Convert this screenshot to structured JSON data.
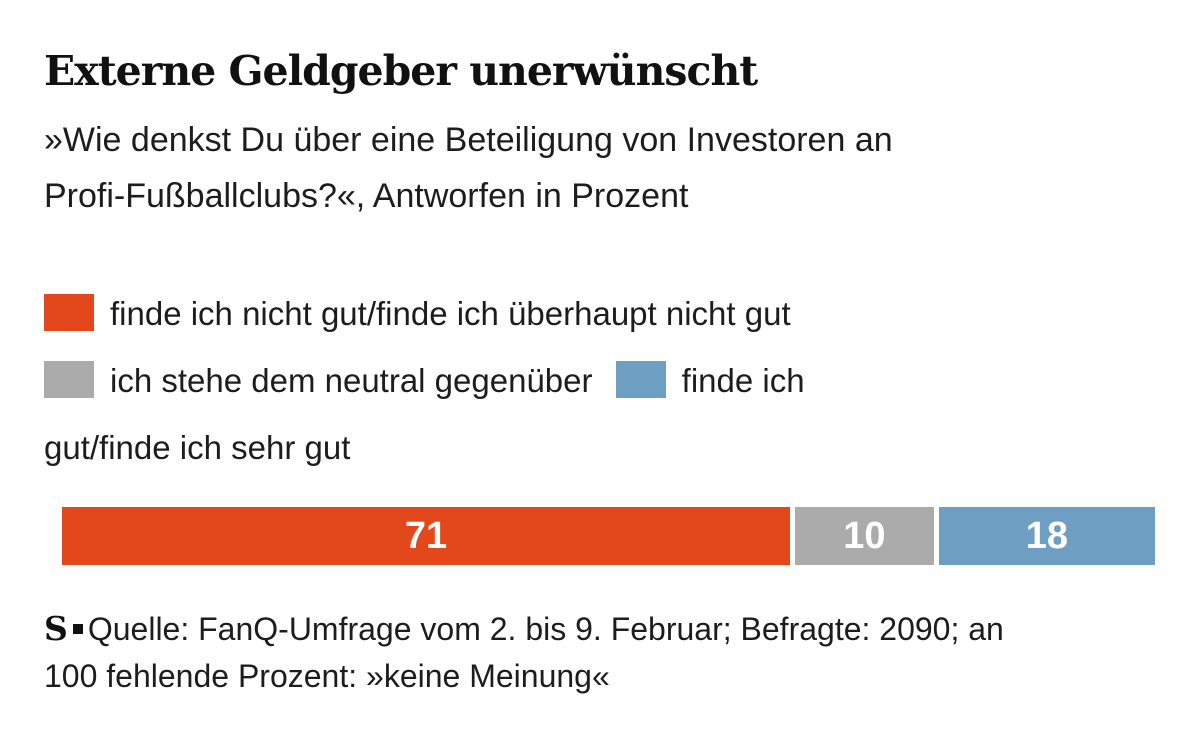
{
  "header": {
    "title": "Externe Geldgeber unerwünscht",
    "subtitle_line1": "»Wie denkst Du über eine Beteiligung von Investoren an",
    "subtitle_line2": "Profi-Fußballclubs?«, Antworfen in Prozent"
  },
  "chart_data": {
    "type": "bar",
    "stacked": true,
    "orientation": "horizontal",
    "title": "Externe Geldgeber unerwünscht",
    "subtitle": "»Wie denkst Du über eine Beteiligung von Investoren an Profi-Fußballclubs?«, Antworfen in Prozent",
    "unit": "Prozent",
    "xlim": [
      0,
      100
    ],
    "legend_position": "above-bar",
    "grid": false,
    "series": [
      {
        "name": "finde ich nicht gut/finde ich überhaupt nicht gut",
        "value": 71,
        "color": "#e2481c"
      },
      {
        "name": "ich stehe dem neutral gegenüber",
        "value": 10,
        "color": "#ababab"
      },
      {
        "name": "finde ich gut/finde ich sehr gut",
        "value": 18,
        "color": "#6f9ec3"
      }
    ],
    "note": "an 100 fehlende Prozent: »keine Meinung«"
  },
  "source": {
    "logo": "S",
    "line1": "Quelle: FanQ-Umfrage vom 2. bis 9. Februar; Befragte: 2090; an",
    "line2": "100 fehlende Prozent: »keine Meinung«"
  },
  "colors": {
    "background": "#ffffff",
    "text": "#1d1d1d",
    "bar_value_text": "#ffffff"
  }
}
